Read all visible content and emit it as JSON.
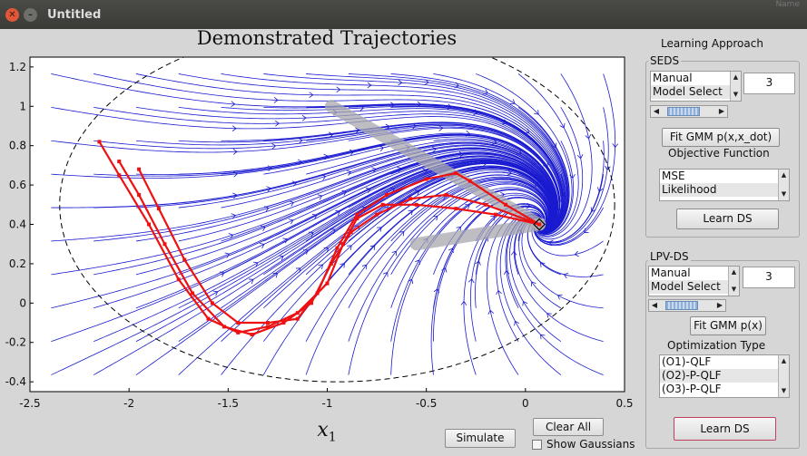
{
  "window": {
    "title": "Untitled",
    "corner_text": "Name"
  },
  "plot": {
    "title": "Demonstrated Trajectories",
    "xlabel": "x",
    "xlabel_sub": "1",
    "xticks": [
      "-2.5",
      "-2",
      "-1.5",
      "-1",
      "-0.5",
      "0",
      "0.5"
    ],
    "yticks": [
      "1.2",
      "1",
      "0.8",
      "0.6",
      "0.4",
      "0.2",
      "0",
      "-0.2",
      "-0.4"
    ],
    "colors": {
      "streamlines": "#1a1ad0",
      "trajectories": "#ee1111",
      "overlay": "#a8a8ae",
      "boundary": "#000000"
    }
  },
  "chart_data": {
    "type": "scatter",
    "title": "Demonstrated Trajectories",
    "xlabel": "x1",
    "ylabel": "",
    "xlim": [
      -2.5,
      0.5
    ],
    "ylim": [
      -0.45,
      1.25
    ],
    "attractor": [
      0.07,
      0.4
    ],
    "series": [
      {
        "points": [
          [
            -2.15,
            0.82
          ],
          [
            -2.05,
            0.65
          ],
          [
            -1.9,
            0.4
          ],
          [
            -1.75,
            0.12
          ],
          [
            -1.6,
            -0.08
          ],
          [
            -1.45,
            -0.15
          ],
          [
            -1.3,
            -0.12
          ],
          [
            -1.15,
            -0.05
          ],
          [
            -1.0,
            0.1
          ],
          [
            -0.92,
            0.3
          ],
          [
            -0.85,
            0.43
          ],
          [
            -0.72,
            0.5
          ],
          [
            -0.55,
            0.5
          ],
          [
            -0.35,
            0.48
          ],
          [
            -0.15,
            0.45
          ],
          [
            0.07,
            0.4
          ]
        ]
      },
      {
        "points": [
          [
            -2.05,
            0.72
          ],
          [
            -1.95,
            0.55
          ],
          [
            -1.82,
            0.3
          ],
          [
            -1.68,
            0.05
          ],
          [
            -1.52,
            -0.12
          ],
          [
            -1.38,
            -0.16
          ],
          [
            -1.22,
            -0.1
          ],
          [
            -1.08,
            0.0
          ],
          [
            -0.98,
            0.2
          ],
          [
            -0.88,
            0.36
          ],
          [
            -0.75,
            0.45
          ],
          [
            -0.58,
            0.53
          ],
          [
            -0.4,
            0.55
          ],
          [
            -0.2,
            0.5
          ],
          [
            0.07,
            0.4
          ]
        ]
      },
      {
        "points": [
          [
            -1.95,
            0.68
          ],
          [
            -1.85,
            0.48
          ],
          [
            -1.72,
            0.22
          ],
          [
            -1.58,
            0.0
          ],
          [
            -1.45,
            -0.1
          ],
          [
            -1.3,
            -0.1
          ],
          [
            -1.15,
            -0.08
          ],
          [
            -1.05,
            0.05
          ],
          [
            -0.95,
            0.28
          ],
          [
            -0.85,
            0.45
          ],
          [
            -0.7,
            0.55
          ],
          [
            -0.5,
            0.63
          ],
          [
            -0.35,
            0.66
          ],
          [
            -0.28,
            0.62
          ],
          [
            -0.1,
            0.5
          ],
          [
            0.07,
            0.4
          ]
        ]
      }
    ]
  },
  "right_panel": {
    "approach_label": "Learning Approach",
    "seds": {
      "title": "SEDS",
      "list": [
        "Manual",
        "Model Select"
      ],
      "k_value": "3",
      "fit_button": "Fit GMM p(x,x_dot)",
      "objective_label": "Objective Function",
      "objective_list": [
        "MSE",
        "Likelihood"
      ],
      "learn_button": "Learn DS"
    },
    "lpv": {
      "title": "LPV-DS",
      "list": [
        "Manual",
        "Model Select"
      ],
      "k_value": "3",
      "fit_button": "Fit GMM p(x)",
      "optim_label": "Optimization Type",
      "optim_list": [
        "(O1)-QLF",
        "(O2)-P-QLF",
        "(O3)-P-QLF"
      ],
      "learn_button": "Learn DS"
    }
  },
  "bottom": {
    "simulate": "Simulate",
    "clear_all": "Clear All",
    "show_gaussians": "Show Gaussians"
  }
}
